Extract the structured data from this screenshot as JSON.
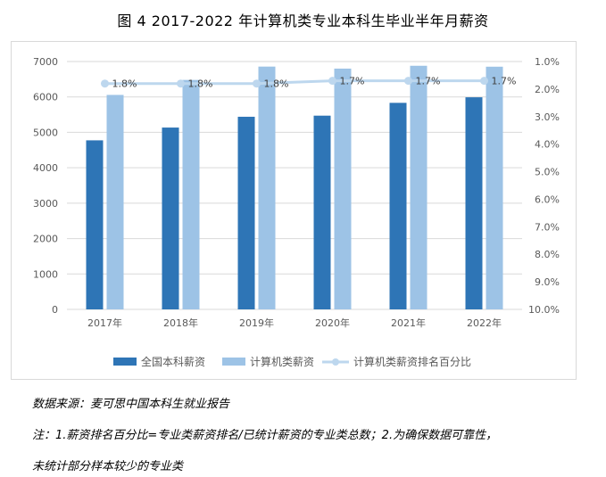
{
  "title": "图 4 2017-2022 年计算机类专业本科生毕业半年月薪资",
  "legend": {
    "national": "全国本科薪资",
    "cs": "计算机类薪资",
    "rank": "计算机类薪资排名百分比"
  },
  "colors": {
    "national": "#2e75b6",
    "cs": "#9dc3e6",
    "rank_line": "#bdd7ee",
    "rank_marker": "#bdd7ee",
    "axis_text": "#595959",
    "gridline": "#d9d9d9"
  },
  "chart_data": {
    "type": "bar",
    "categories": [
      "2017年",
      "2018年",
      "2019年",
      "2020年",
      "2021年",
      "2022年"
    ],
    "series": [
      {
        "name": "全国本科薪资",
        "type": "bar",
        "axis": "left",
        "values": [
          4774,
          5135,
          5440,
          5471,
          5833,
          5990
        ]
      },
      {
        "name": "计算机类薪资",
        "type": "bar",
        "axis": "left",
        "values": [
          6057,
          6480,
          6857,
          6800,
          6880,
          6854
        ]
      },
      {
        "name": "计算机类薪资排名百分比",
        "type": "line",
        "axis": "right",
        "values": [
          1.8,
          1.8,
          1.8,
          1.7,
          1.7,
          1.7
        ],
        "labels": [
          "1.8%",
          "1.8%",
          "1.8%",
          "1.7%",
          "1.7%",
          "1.7%"
        ]
      }
    ],
    "y_left": {
      "min": 0,
      "max": 7000,
      "ticks": [
        "0",
        "1000",
        "2000",
        "3000",
        "4000",
        "5000",
        "6000",
        "7000"
      ]
    },
    "y_right": {
      "min": 1.0,
      "max": 10.0,
      "reversed": true,
      "ticks": [
        "1.0%",
        "2.0%",
        "3.0%",
        "4.0%",
        "5.0%",
        "6.0%",
        "7.0%",
        "8.0%",
        "9.0%",
        "10.0%"
      ]
    },
    "grid": "horizontal",
    "legend_position": "bottom"
  },
  "notes": {
    "source": "数据来源：麦可思中国本科生就业报告",
    "line1": "注：1.薪资排名百分比=专业类薪资排名/已统计薪资的专业类总数；2.为确保数据可靠性，",
    "line2": "未统计部分样本较少的专业类"
  }
}
